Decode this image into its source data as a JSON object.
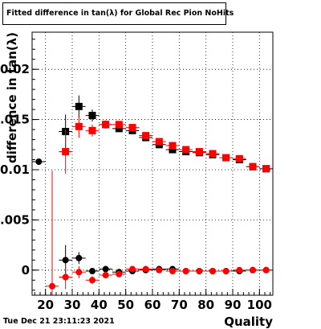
{
  "title": "Fitted difference in tan(λ) for Global Rec Pion NoHits",
  "footer": "Tue Dec 21 23:11:23 2021",
  "chart_data": {
    "type": "scatter",
    "title": "Fitted difference in tan(λ) for Global Rec Pion NoHits",
    "xlabel": "Quality",
    "ylabel": "difference in tan(λ)",
    "xlim": [
      15,
      105
    ],
    "ylim": [
      -0.0025,
      0.0237
    ],
    "grid": true,
    "x_ticks": [
      20,
      30,
      40,
      50,
      60,
      70,
      80,
      90,
      100
    ],
    "x_tick_labels": [
      "20",
      "30",
      "40",
      "50",
      "60",
      "70",
      "80",
      "90",
      "100"
    ],
    "y_ticks": [
      0,
      0.005,
      0.01,
      0.015,
      0.02
    ],
    "y_tick_labels": [
      "0",
      "0.005",
      "0.01",
      "0.015",
      "0.02"
    ],
    "series": [
      {
        "color": "#000000",
        "marker": "square",
        "points": [
          {
            "x": 27.5,
            "y": 0.0138,
            "err": 0.0017
          },
          {
            "x": 32.5,
            "y": 0.0163,
            "err": 0.0011
          },
          {
            "x": 37.5,
            "y": 0.0154,
            "err": 0.0006
          },
          {
            "x": 42.5,
            "y": 0.0145,
            "err": 0.0004
          },
          {
            "x": 47.5,
            "y": 0.0141,
            "err": 0.0003
          },
          {
            "x": 52.5,
            "y": 0.0139,
            "err": 0.0003
          },
          {
            "x": 57.5,
            "y": 0.0132,
            "err": 0.0003
          },
          {
            "x": 62.5,
            "y": 0.0125,
            "err": 0.0002
          },
          {
            "x": 67.5,
            "y": 0.012,
            "err": 0.0002
          },
          {
            "x": 72.5,
            "y": 0.0118,
            "err": 0.0002
          },
          {
            "x": 77.5,
            "y": 0.0117,
            "err": 0.0002
          },
          {
            "x": 82.5,
            "y": 0.0115,
            "err": 0.0002
          },
          {
            "x": 87.5,
            "y": 0.0112,
            "err": 0.0002
          },
          {
            "x": 92.5,
            "y": 0.011,
            "err": 0.0002
          },
          {
            "x": 97.5,
            "y": 0.0103,
            "err": 0.0002
          },
          {
            "x": 102.5,
            "y": 0.0101,
            "err": 0.0002
          }
        ]
      },
      {
        "color": "#ff0000",
        "marker": "square",
        "points": [
          {
            "x": 27.5,
            "y": 0.0118,
            "err": 0.0022
          },
          {
            "x": 32.5,
            "y": 0.0143,
            "err": 0.0011
          },
          {
            "x": 37.5,
            "y": 0.0139,
            "err": 0.0006
          },
          {
            "x": 42.5,
            "y": 0.0145,
            "err": 0.0004
          },
          {
            "x": 47.5,
            "y": 0.0145,
            "err": 0.0003
          },
          {
            "x": 52.5,
            "y": 0.0142,
            "err": 0.0003
          },
          {
            "x": 57.5,
            "y": 0.0134,
            "err": 0.0003
          },
          {
            "x": 62.5,
            "y": 0.0128,
            "err": 0.0002
          },
          {
            "x": 67.5,
            "y": 0.0124,
            "err": 0.0002
          },
          {
            "x": 72.5,
            "y": 0.012,
            "err": 0.0002
          },
          {
            "x": 77.5,
            "y": 0.0118,
            "err": 0.0002
          },
          {
            "x": 82.5,
            "y": 0.0116,
            "err": 0.0002
          },
          {
            "x": 87.5,
            "y": 0.0112,
            "err": 0.0002
          },
          {
            "x": 92.5,
            "y": 0.0111,
            "err": 0.0002
          },
          {
            "x": 97.5,
            "y": 0.0103,
            "err": 0.0002
          },
          {
            "x": 102.5,
            "y": 0.0101,
            "err": 0.0002
          }
        ]
      },
      {
        "color": "#000000",
        "marker": "circle",
        "points": [
          {
            "x": 17.5,
            "y": 0.0108,
            "err": 0
          },
          {
            "x": 27.5,
            "y": 0.001,
            "err": 0.0015
          },
          {
            "x": 32.5,
            "y": 0.0012,
            "err": 0.0006
          },
          {
            "x": 37.5,
            "y": -0.0001,
            "err": 0.0002
          },
          {
            "x": 42.5,
            "y": 0.0001,
            "err": 0.0002
          },
          {
            "x": 47.5,
            "y": -0.0002,
            "err": 0.0001
          },
          {
            "x": 52.5,
            "y": -0.0001,
            "err": 0.0001
          },
          {
            "x": 57.5,
            "y": 0.0,
            "err": 0.0001
          },
          {
            "x": 62.5,
            "y": 0.0001,
            "err": 0.0001
          },
          {
            "x": 67.5,
            "y": 0.0001,
            "err": 0.0001
          },
          {
            "x": 72.5,
            "y": -0.0001,
            "err": 0.0001
          },
          {
            "x": 77.5,
            "y": -0.0001,
            "err": 0.0001
          },
          {
            "x": 82.5,
            "y": -0.0001,
            "err": 0.0001
          },
          {
            "x": 87.5,
            "y": -0.0001,
            "err": 0.0001
          },
          {
            "x": 92.5,
            "y": -0.0001,
            "err": 0.0001
          },
          {
            "x": 97.5,
            "y": 0.0,
            "err": 0.0001
          },
          {
            "x": 102.5,
            "y": 0.0,
            "err": 0.0001
          }
        ]
      },
      {
        "color": "#ff0000",
        "marker": "circle",
        "points": [
          {
            "x": 22.5,
            "y": -0.0016,
            "err": 0.0115
          },
          {
            "x": 27.5,
            "y": -0.0007,
            "err": 0.0012
          },
          {
            "x": 32.5,
            "y": -0.0002,
            "err": 0.0006
          },
          {
            "x": 37.5,
            "y": -0.001,
            "err": 0.0004
          },
          {
            "x": 42.5,
            "y": -0.0005,
            "err": 0.0003
          },
          {
            "x": 47.5,
            "y": -0.0004,
            "err": 0.0002
          },
          {
            "x": 52.5,
            "y": 0.0001,
            "err": 0.0002
          },
          {
            "x": 57.5,
            "y": 0.0001,
            "err": 0.0001
          },
          {
            "x": 62.5,
            "y": 0.0,
            "err": 0.0001
          },
          {
            "x": 67.5,
            "y": -0.0001,
            "err": 0.0001
          },
          {
            "x": 72.5,
            "y": -0.0001,
            "err": 0.0001
          },
          {
            "x": 77.5,
            "y": -0.0001,
            "err": 0.0001
          },
          {
            "x": 82.5,
            "y": -0.0001,
            "err": 0.0001
          },
          {
            "x": 87.5,
            "y": -0.0001,
            "err": 0.0001
          },
          {
            "x": 92.5,
            "y": 0.0,
            "err": 0.0001
          },
          {
            "x": 97.5,
            "y": 0.0,
            "err": 0.0001
          },
          {
            "x": 102.5,
            "y": 0.0,
            "err": 0.0001
          }
        ]
      }
    ]
  }
}
